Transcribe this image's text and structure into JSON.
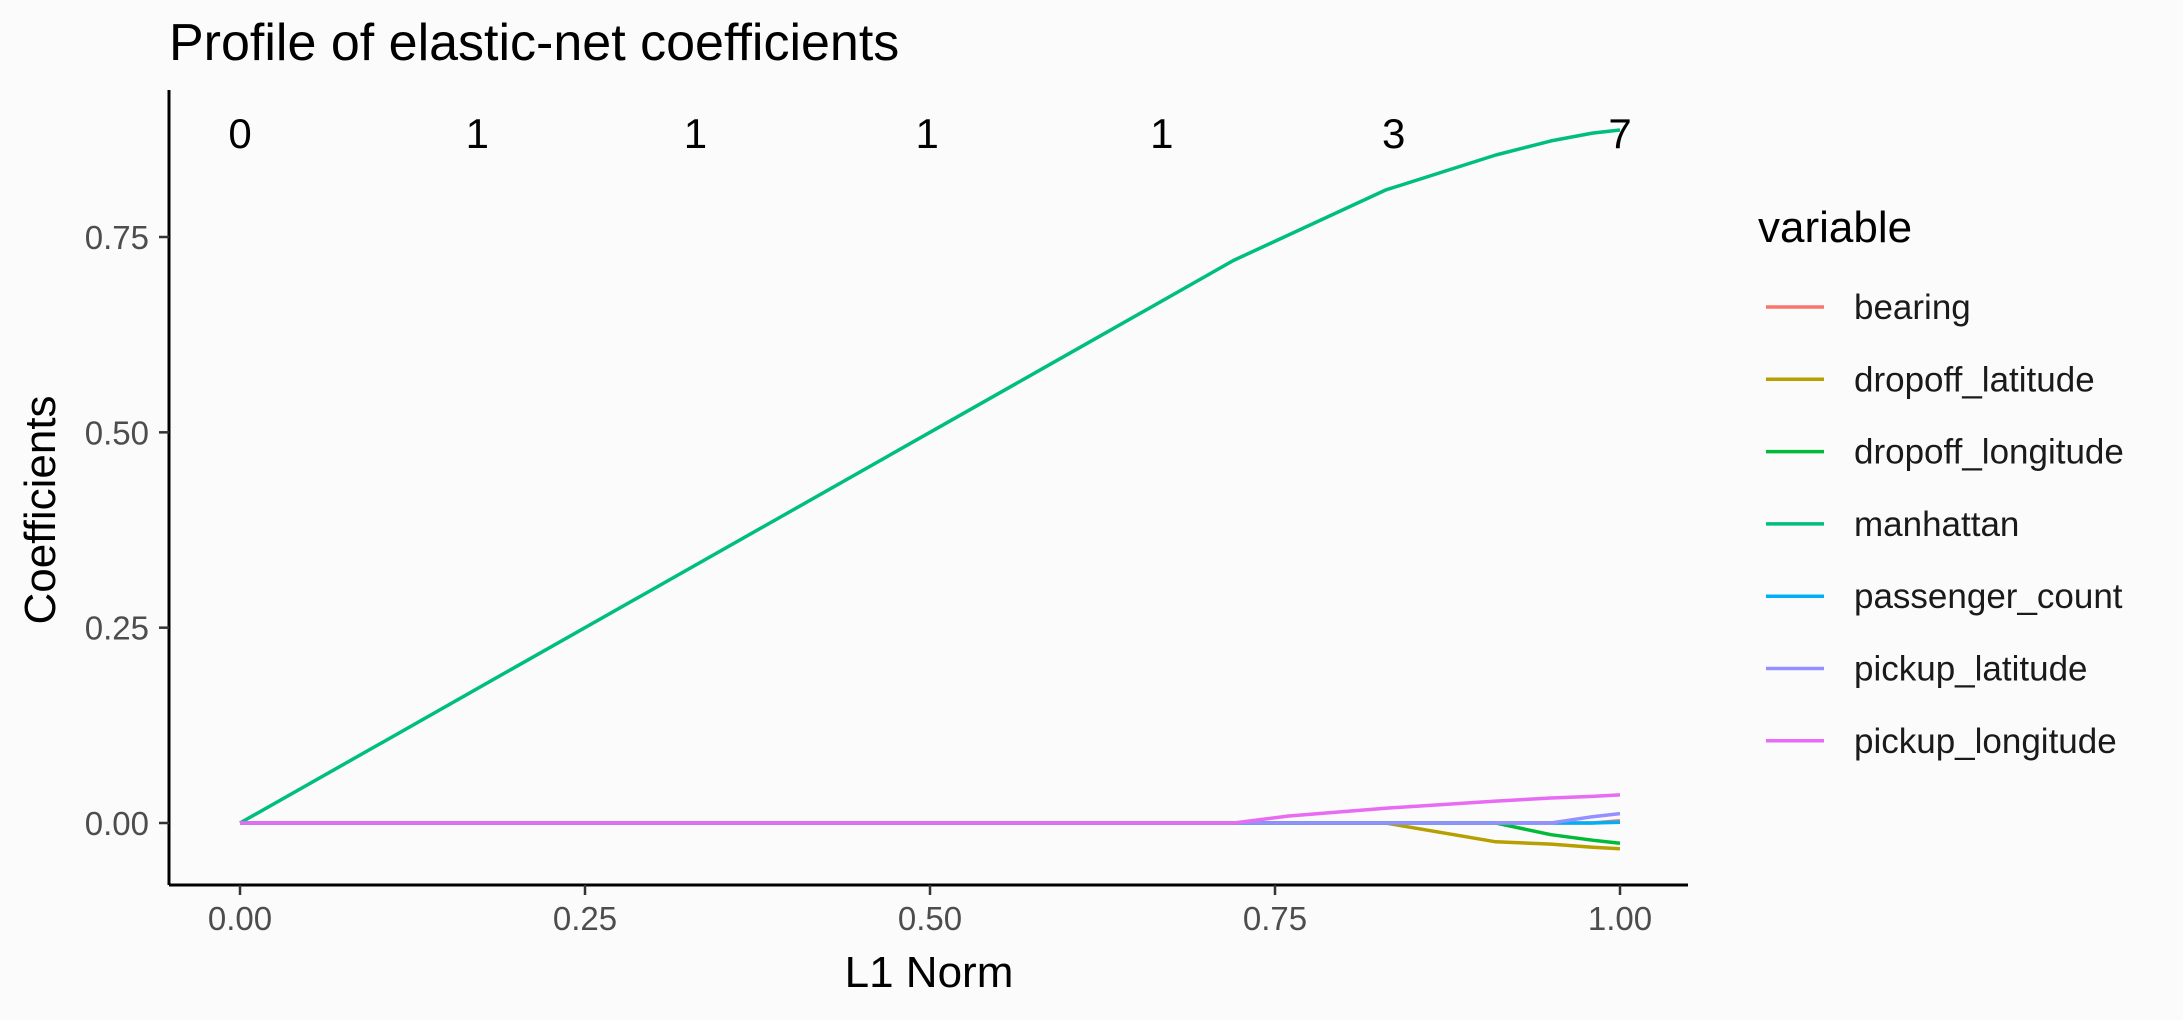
{
  "chart_data": {
    "type": "line",
    "title": "Profile of elastic-net coefficients",
    "xlabel": "L1 Norm",
    "ylabel": "Coefficients",
    "xlim": [
      -0.05,
      1.05
    ],
    "ylim": [
      -0.078,
      0.9
    ],
    "grid": false,
    "legend_position": "right",
    "x_ticks": [
      0,
      0.25,
      0.5,
      0.75,
      1.0
    ],
    "x_tick_labels": [
      "0.00",
      "0.25",
      "0.50",
      "0.75",
      "1.00"
    ],
    "y_ticks": [
      0,
      0.25,
      0.5,
      0.75
    ],
    "y_tick_labels": [
      "0.00",
      "0.25",
      "0.50",
      "0.75"
    ],
    "top_axis": {
      "x": [
        0,
        0.172,
        0.33,
        0.498,
        0.668,
        0.836,
        1.0
      ],
      "labels": [
        "0",
        "1",
        "1",
        "1",
        "1",
        "3",
        "7"
      ]
    },
    "legend_title": "variable",
    "series": [
      {
        "name": "bearing",
        "color": "#F8766D",
        "x": [
          0,
          0.2,
          0.4,
          0.6,
          0.72,
          0.83,
          0.91,
          0.95,
          0.98,
          1.0
        ],
        "y": [
          0,
          0,
          0,
          0,
          0,
          0,
          0,
          0,
          0,
          0.003
        ]
      },
      {
        "name": "dropoff_latitude",
        "color": "#B79F00",
        "x": [
          0,
          0.2,
          0.4,
          0.6,
          0.72,
          0.83,
          0.91,
          0.95,
          0.98,
          1.0
        ],
        "y": [
          0,
          0,
          0,
          0,
          0,
          0,
          -0.024,
          -0.027,
          -0.031,
          -0.033
        ]
      },
      {
        "name": "dropoff_longitude",
        "color": "#00BA38",
        "x": [
          0,
          0.2,
          0.4,
          0.6,
          0.72,
          0.83,
          0.91,
          0.95,
          0.98,
          1.0
        ],
        "y": [
          0,
          0,
          0,
          0,
          0,
          0,
          0,
          -0.015,
          -0.022,
          -0.026
        ]
      },
      {
        "name": "manhattan",
        "color": "#00BF7D",
        "x": [
          0,
          0.1,
          0.2,
          0.3,
          0.4,
          0.5,
          0.6,
          0.72,
          0.83,
          0.91,
          0.95,
          0.98,
          1.0
        ],
        "y": [
          0,
          0.1,
          0.2,
          0.3,
          0.4,
          0.5,
          0.6,
          0.72,
          0.81,
          0.855,
          0.873,
          0.883,
          0.887
        ]
      },
      {
        "name": "passenger_count",
        "color": "#00B0F6",
        "x": [
          0,
          0.2,
          0.4,
          0.6,
          0.72,
          0.83,
          0.91,
          0.95,
          0.98,
          1.0
        ],
        "y": [
          0,
          0,
          0,
          0,
          0,
          0,
          0,
          0,
          0,
          0.001
        ]
      },
      {
        "name": "pickup_latitude",
        "color": "#9590FF",
        "x": [
          0,
          0.2,
          0.4,
          0.6,
          0.72,
          0.83,
          0.91,
          0.95,
          0.98,
          1.0
        ],
        "y": [
          0,
          0,
          0,
          0,
          0,
          0,
          0,
          0,
          0.008,
          0.012
        ]
      },
      {
        "name": "pickup_longitude",
        "color": "#E76BF3",
        "x": [
          0,
          0.2,
          0.4,
          0.6,
          0.72,
          0.76,
          0.83,
          0.91,
          0.95,
          0.98,
          1.0
        ],
        "y": [
          0,
          0,
          0,
          0,
          0,
          0.009,
          0.019,
          0.028,
          0.032,
          0.034,
          0.036
        ]
      }
    ]
  }
}
